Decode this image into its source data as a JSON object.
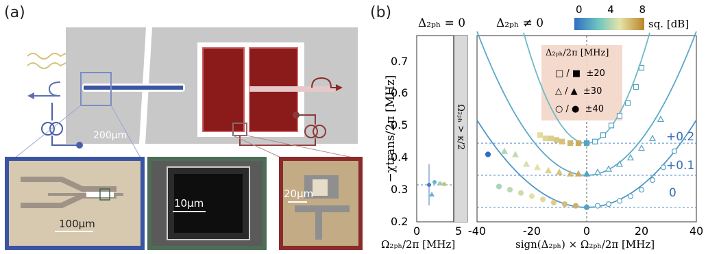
{
  "panel_a": {
    "label": "(a)",
    "scale_main": "200μm",
    "scale_inset1": "100μm",
    "scale_inset2": "10μm",
    "scale_inset3": "20μm"
  },
  "panel_b": {
    "label": "(b)",
    "header_left": "Δ₂ₚₕ = 0",
    "header_right": "Δ₂ₚₕ ≠ 0",
    "colorbar": {
      "ticks": [
        "0",
        "4",
        "8"
      ],
      "label": "sq. [dB]",
      "min": 0,
      "max": 8
    },
    "ylabel": "−χtrans/2π [MHz]",
    "yticks": [
      "0.2",
      "0.3",
      "0.4",
      "0.5",
      "0.6",
      "0.7"
    ],
    "left_xlabel": "Ω₂ₚₕ/2π [MHz]",
    "left_xticks": [
      "0",
      "5"
    ],
    "right_xlabel": "sign(Δ₂ₚₕ) × Ω₂ₚₕ/2π [MHz]",
    "right_xticks": [
      "-40",
      "-20",
      "0",
      "20",
      "40"
    ],
    "vertical_band_label": "Ω₂ₚₕ > κ/2",
    "legend_title": "Δ₂ₚₕ/2π [MHz]",
    "legend_rows": [
      {
        "symbols": "□ / ■",
        "value": "±20"
      },
      {
        "symbols": "△ / ▲",
        "value": "±30"
      },
      {
        "symbols": "○ / ●",
        "value": "±40"
      }
    ],
    "offset_labels": [
      "+0.2",
      "+0.1",
      "0"
    ]
  },
  "chart_data": {
    "type": "scatter",
    "xlim": [
      -40,
      40
    ],
    "ylim": [
      0.2,
      0.78
    ],
    "left_xlim": [
      0,
      5
    ],
    "baselines": [
      0.245,
      0.345,
      0.445
    ],
    "series": [
      {
        "name": "±20",
        "x": [
          -17,
          -15,
          -13,
          -11,
          -9,
          -6,
          -3,
          0,
          3,
          6,
          9,
          12,
          15,
          18,
          20
        ],
        "y": [
          0.47,
          0.46,
          0.46,
          0.455,
          0.45,
          0.445,
          0.445,
          0.445,
          0.45,
          0.47,
          0.5,
          0.53,
          0.57,
          0.62,
          0.68
        ]
      },
      {
        "name": "±30",
        "x": [
          -30,
          -26,
          -22,
          -18,
          -14,
          -10,
          -6,
          -3,
          0,
          4,
          8,
          12,
          16,
          20,
          24,
          27
        ],
        "y": [
          0.42,
          0.41,
          0.38,
          0.37,
          0.36,
          0.355,
          0.35,
          0.35,
          0.35,
          0.355,
          0.365,
          0.38,
          0.4,
          0.43,
          0.46,
          0.52
        ]
      },
      {
        "name": "±40",
        "x": [
          -36,
          -32,
          -28,
          -24,
          -20,
          -16,
          -12,
          -8,
          -4,
          0,
          4,
          8,
          12,
          16,
          20,
          24,
          28,
          32
        ],
        "y": [
          0.41,
          0.31,
          0.3,
          0.29,
          0.28,
          0.27,
          0.26,
          0.255,
          0.25,
          0.245,
          0.25,
          0.255,
          0.265,
          0.28,
          0.3,
          0.33,
          0.37,
          0.42
        ]
      }
    ]
  }
}
